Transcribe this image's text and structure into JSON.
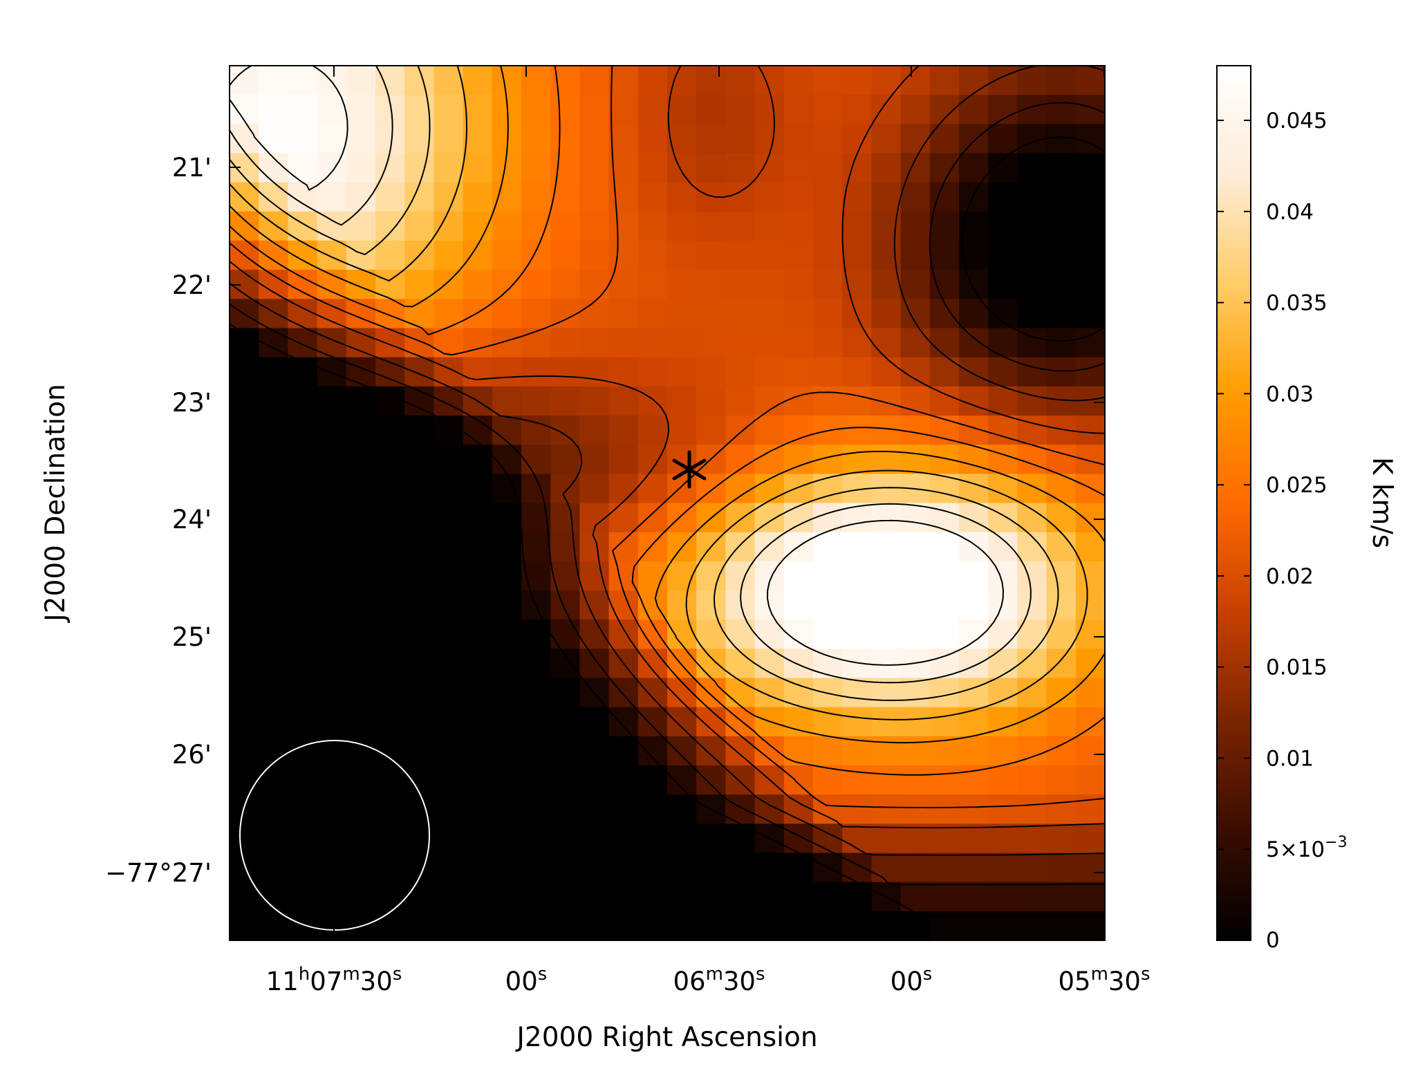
{
  "chart_data": {
    "type": "heatmap",
    "title": "",
    "xlabel": "J2000 Right Ascension",
    "ylabel": "J2000 Declination",
    "colorbar_label": "K km/s",
    "colormap": [
      "#000000",
      "#3a0d00",
      "#7a2400",
      "#c84000",
      "#ff6a00",
      "#ff9c00",
      "#ffcc66",
      "#ffecd8",
      "#ffffff"
    ],
    "color_range": [
      0,
      0.048
    ],
    "x_ticks": [
      {
        "pre": "11",
        "sup1": "h",
        "mid": "07",
        "sup2": "m",
        "post": "30",
        "sup3": "s"
      },
      {
        "pre": "",
        "sup1": "",
        "mid": "",
        "sup2": "",
        "post": "00",
        "sup3": "s"
      },
      {
        "pre": "",
        "sup1": "",
        "mid": "06",
        "sup2": "m",
        "post": "30",
        "sup3": "s"
      },
      {
        "pre": "",
        "sup1": "",
        "mid": "",
        "sup2": "",
        "post": "00",
        "sup3": "s"
      },
      {
        "pre": "",
        "sup1": "",
        "mid": "05",
        "sup2": "m",
        "post": "30",
        "sup3": "s"
      }
    ],
    "y_ticks": [
      "21'",
      "22'",
      "23'",
      "24'",
      "25'",
      "26'",
      "−77°27'"
    ],
    "colorbar_ticks": [
      {
        "value": 0,
        "label": "0"
      },
      {
        "value": 0.005,
        "label": "5×10",
        "sup": "−3"
      },
      {
        "value": 0.01,
        "label": "0.01"
      },
      {
        "value": 0.015,
        "label": "0.015"
      },
      {
        "value": 0.02,
        "label": "0.02"
      },
      {
        "value": 0.025,
        "label": "0.025"
      },
      {
        "value": 0.03,
        "label": "0.03"
      },
      {
        "value": 0.035,
        "label": "0.035"
      },
      {
        "value": 0.04,
        "label": "0.04"
      },
      {
        "value": 0.045,
        "label": "0.045"
      }
    ],
    "contour_levels": [
      0.0025,
      0.0075,
      0.0125,
      0.0175,
      0.0215,
      0.025,
      0.029,
      0.033,
      0.037,
      0.041,
      0.045
    ],
    "grid": false,
    "legend": "none",
    "markers": [
      {
        "type": "asterisk",
        "name": "source position",
        "symbol": "*"
      },
      {
        "type": "beam-circle",
        "name": "beam",
        "color": "#ffffff"
      }
    ]
  }
}
